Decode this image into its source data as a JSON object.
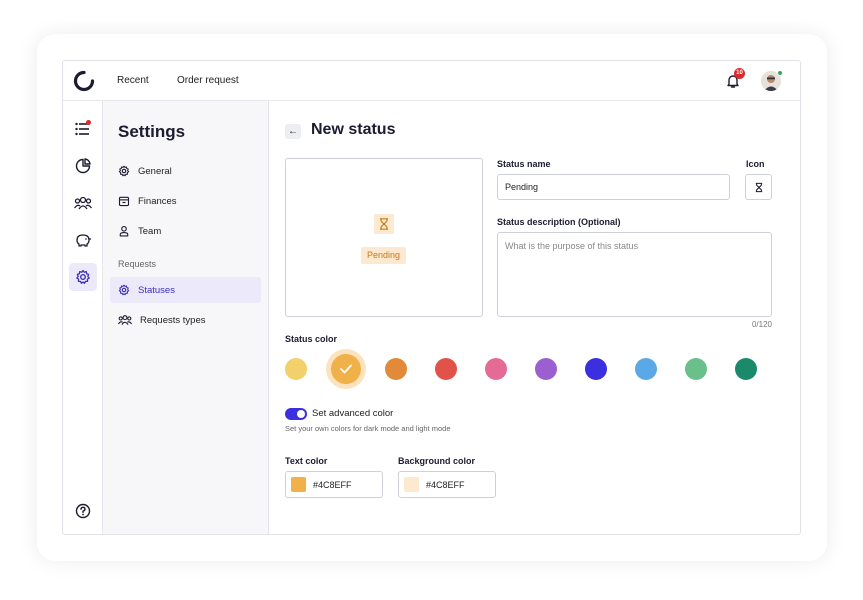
{
  "topbar": {
    "nav": [
      "Recent",
      "Order request"
    ],
    "notification_count": "10"
  },
  "sidebar": {
    "title": "Settings",
    "items": [
      {
        "label": "General",
        "icon": "gear-icon"
      },
      {
        "label": "Finances",
        "icon": "wallet-icon"
      },
      {
        "label": "Team",
        "icon": "users-icon"
      }
    ],
    "section_label": "Requests",
    "section_items": [
      {
        "label": "Statuses",
        "icon": "gear-icon",
        "active": true
      },
      {
        "label": "Requests types",
        "icon": "group-icon"
      }
    ]
  },
  "main": {
    "title": "New status",
    "preview_label": "Pending",
    "status_name_label": "Status name",
    "status_name_value": "Pending",
    "icon_label": "Icon",
    "description_label": "Status description (Optional)",
    "description_placeholder": "What is the purpose of this status",
    "counter": "0/120",
    "status_color_label": "Status color",
    "colors": [
      "#f2d06b",
      "#f0b04a",
      "#e08a3a",
      "#e2524a",
      "#e66a96",
      "#9b5fd1",
      "#3b2fe0",
      "#5aa9e6",
      "#6bbf8a",
      "#1b8a6b"
    ],
    "selected_color_index": 1,
    "advanced_label": "Set advanced color",
    "advanced_sub": "Set your own colors for dark mode and light mode",
    "text_color_label": "Text color",
    "text_color_value": "#4C8EFF",
    "text_color_chip": "#f0b04a",
    "bg_color_label": "Background color",
    "bg_color_value": "#4C8EFF",
    "bg_color_chip": "#fde9cf"
  }
}
